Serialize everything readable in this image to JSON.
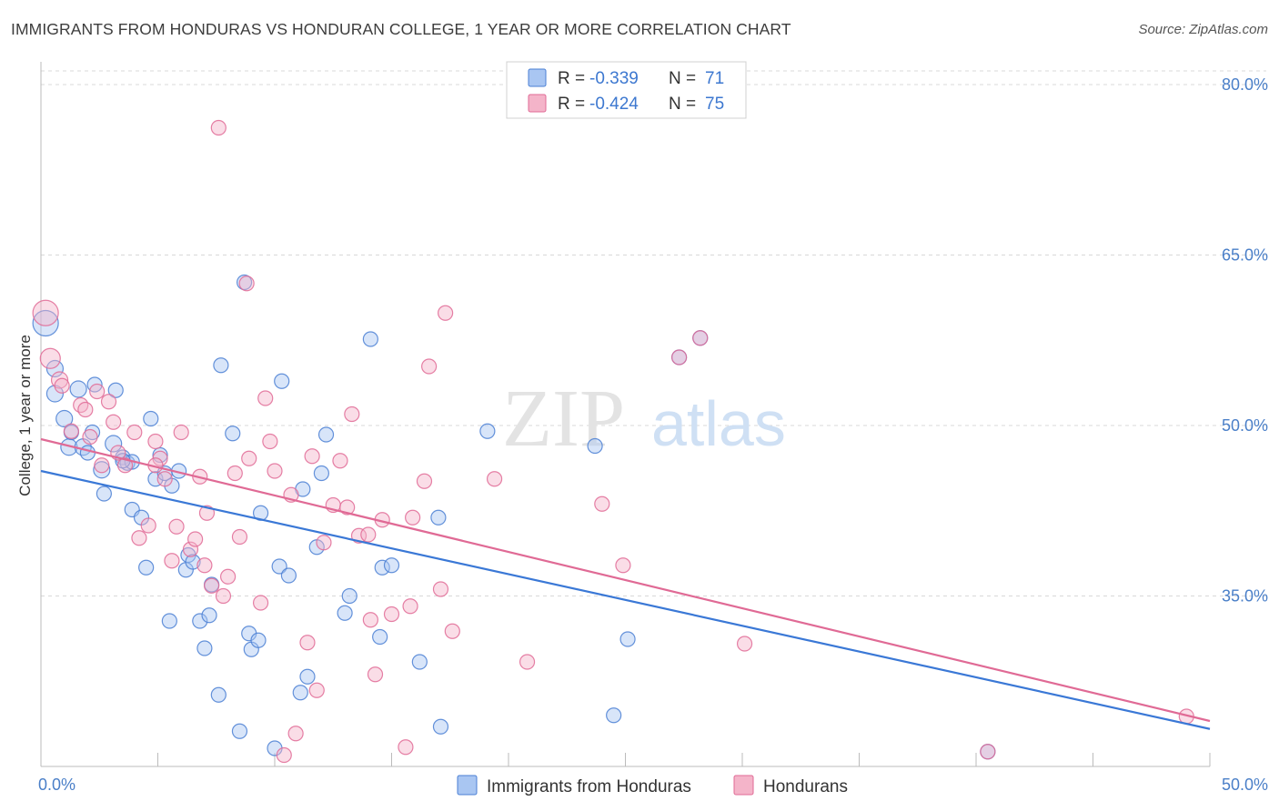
{
  "title": "IMMIGRANTS FROM HONDURAS VS HONDURAN COLLEGE, 1 YEAR OR MORE CORRELATION CHART",
  "source": "Source: ZipAtlas.com",
  "watermark": {
    "zip": "ZIP",
    "atlas": "atlas"
  },
  "colors": {
    "blue": "#4a7fd4",
    "blue_fill": "#a9c6f2",
    "pink": "#e06a95",
    "pink_fill": "#f4b4c9",
    "grid": "#d8d8d8",
    "tick_text": "#4a7fc8"
  },
  "chart_data": {
    "type": "scatter",
    "title": "IMMIGRANTS FROM HONDURAS VS HONDURAN COLLEGE, 1 YEAR OR MORE CORRELATION CHART",
    "xlabel": "",
    "ylabel": "College, 1 year or more",
    "xlim": [
      0,
      50
    ],
    "ylim": [
      20,
      82
    ],
    "x_tick_labels": [
      "0.0%",
      "50.0%"
    ],
    "y_ticks": [
      35,
      50,
      65,
      80
    ],
    "y_tick_labels": [
      "35.0%",
      "50.0%",
      "65.0%",
      "80.0%"
    ],
    "legend": {
      "r_label": "R =",
      "n_label": "N =",
      "entries": [
        {
          "series": "Immigrants from Honduras",
          "r": "-0.339",
          "n": "71"
        },
        {
          "series": "Hondurans",
          "r": "-0.424",
          "n": "75"
        }
      ]
    },
    "series": [
      {
        "name": "Immigrants from Honduras",
        "color": "blue",
        "trend": {
          "x0": 0,
          "y0": 46.0,
          "x1": 50,
          "y1": 23.3
        },
        "points": [
          [
            0.2,
            59.0,
            14
          ],
          [
            0.6,
            55.0,
            9
          ],
          [
            0.6,
            52.8,
            9
          ],
          [
            1.0,
            50.6,
            9
          ],
          [
            1.2,
            48.1,
            9
          ],
          [
            1.3,
            49.4,
            8
          ],
          [
            1.6,
            53.2,
            9
          ],
          [
            1.8,
            48.1,
            9
          ],
          [
            2.0,
            47.6,
            8
          ],
          [
            2.2,
            49.4,
            8
          ],
          [
            2.3,
            53.6,
            8
          ],
          [
            2.6,
            46.1,
            9
          ],
          [
            2.7,
            44.0,
            8
          ],
          [
            3.1,
            48.4,
            9
          ],
          [
            3.2,
            53.1,
            8
          ],
          [
            3.5,
            47.2,
            8
          ],
          [
            3.7,
            46.7,
            8
          ],
          [
            3.9,
            46.8,
            8
          ],
          [
            3.9,
            42.6,
            8
          ],
          [
            4.3,
            41.9,
            8
          ],
          [
            4.5,
            37.5,
            8
          ],
          [
            4.7,
            50.6,
            8
          ],
          [
            4.9,
            45.3,
            8
          ],
          [
            5.1,
            47.4,
            8
          ],
          [
            5.3,
            45.8,
            8
          ],
          [
            5.6,
            44.7,
            8
          ],
          [
            5.5,
            32.8,
            8
          ],
          [
            5.9,
            46.0,
            8
          ],
          [
            6.2,
            37.3,
            8
          ],
          [
            6.3,
            38.6,
            8
          ],
          [
            6.5,
            38.0,
            8
          ],
          [
            6.8,
            32.8,
            8
          ],
          [
            7.0,
            30.4,
            8
          ],
          [
            7.2,
            33.3,
            8
          ],
          [
            7.3,
            36.0,
            8
          ],
          [
            7.6,
            26.3,
            8
          ],
          [
            7.7,
            55.3,
            8
          ],
          [
            8.2,
            49.3,
            8
          ],
          [
            8.5,
            23.1,
            8
          ],
          [
            8.7,
            62.6,
            8
          ],
          [
            8.9,
            31.7,
            8
          ],
          [
            9.0,
            30.3,
            8
          ],
          [
            9.3,
            31.1,
            8
          ],
          [
            9.4,
            42.3,
            8
          ],
          [
            10.0,
            21.6,
            8
          ],
          [
            10.2,
            37.6,
            8
          ],
          [
            10.3,
            53.9,
            8
          ],
          [
            10.6,
            36.8,
            8
          ],
          [
            11.1,
            26.5,
            8
          ],
          [
            11.2,
            44.4,
            8
          ],
          [
            11.4,
            27.9,
            8
          ],
          [
            11.8,
            39.3,
            8
          ],
          [
            12.0,
            45.8,
            8
          ],
          [
            12.2,
            49.2,
            8
          ],
          [
            13.0,
            33.5,
            8
          ],
          [
            13.2,
            35.0,
            8
          ],
          [
            14.1,
            57.6,
            8
          ],
          [
            14.5,
            31.4,
            8
          ],
          [
            14.6,
            37.5,
            8
          ],
          [
            15.0,
            37.7,
            8
          ],
          [
            16.2,
            29.2,
            8
          ],
          [
            17.0,
            41.9,
            8
          ],
          [
            17.1,
            23.5,
            8
          ],
          [
            19.1,
            49.5,
            8
          ],
          [
            23.7,
            48.2,
            8
          ],
          [
            24.5,
            24.5,
            8
          ],
          [
            25.1,
            31.2,
            8
          ],
          [
            27.3,
            56.0,
            8
          ],
          [
            28.2,
            57.7,
            8
          ],
          [
            40.5,
            21.3,
            8
          ],
          [
            3.5,
            46.9,
            8
          ]
        ]
      },
      {
        "name": "Hondurans",
        "color": "pink",
        "trend": {
          "x0": 0,
          "y0": 48.8,
          "x1": 50,
          "y1": 24.0
        },
        "points": [
          [
            0.2,
            59.9,
            14
          ],
          [
            0.4,
            55.9,
            11
          ],
          [
            0.8,
            54.0,
            9
          ],
          [
            0.9,
            53.5,
            8
          ],
          [
            1.3,
            49.5,
            8
          ],
          [
            1.7,
            51.8,
            8
          ],
          [
            1.9,
            51.4,
            8
          ],
          [
            2.1,
            49.0,
            8
          ],
          [
            2.4,
            53.0,
            8
          ],
          [
            2.6,
            46.5,
            8
          ],
          [
            2.9,
            52.1,
            8
          ],
          [
            3.1,
            50.3,
            8
          ],
          [
            3.3,
            47.6,
            8
          ],
          [
            3.6,
            46.5,
            8
          ],
          [
            4.0,
            49.4,
            8
          ],
          [
            4.2,
            40.1,
            8
          ],
          [
            4.6,
            41.2,
            8
          ],
          [
            4.9,
            48.6,
            8
          ],
          [
            5.1,
            47.1,
            8
          ],
          [
            5.3,
            45.3,
            8
          ],
          [
            5.6,
            38.1,
            8
          ],
          [
            5.8,
            41.1,
            8
          ],
          [
            6.0,
            49.4,
            8
          ],
          [
            6.4,
            39.1,
            8
          ],
          [
            6.6,
            40.0,
            8
          ],
          [
            6.8,
            45.5,
            8
          ],
          [
            7.0,
            37.7,
            8
          ],
          [
            7.1,
            42.3,
            8
          ],
          [
            7.3,
            35.9,
            8
          ],
          [
            7.6,
            76.2,
            8
          ],
          [
            7.8,
            35.0,
            8
          ],
          [
            8.0,
            36.7,
            8
          ],
          [
            8.3,
            45.8,
            8
          ],
          [
            8.5,
            40.2,
            8
          ],
          [
            8.8,
            62.5,
            8
          ],
          [
            8.9,
            47.1,
            8
          ],
          [
            9.4,
            34.4,
            8
          ],
          [
            9.6,
            52.4,
            8
          ],
          [
            9.8,
            48.6,
            8
          ],
          [
            10.0,
            46.0,
            8
          ],
          [
            10.4,
            21.0,
            8
          ],
          [
            10.7,
            43.9,
            8
          ],
          [
            10.9,
            22.9,
            8
          ],
          [
            11.4,
            30.9,
            8
          ],
          [
            11.6,
            47.3,
            8
          ],
          [
            11.8,
            26.7,
            8
          ],
          [
            12.1,
            39.7,
            8
          ],
          [
            12.5,
            43.0,
            8
          ],
          [
            12.8,
            46.9,
            8
          ],
          [
            13.1,
            42.8,
            8
          ],
          [
            13.3,
            51.0,
            8
          ],
          [
            13.6,
            40.3,
            8
          ],
          [
            14.0,
            40.4,
            8
          ],
          [
            14.1,
            32.9,
            8
          ],
          [
            14.3,
            28.1,
            8
          ],
          [
            14.6,
            41.7,
            8
          ],
          [
            15.0,
            33.4,
            8
          ],
          [
            15.8,
            34.1,
            8
          ],
          [
            15.6,
            21.7,
            8
          ],
          [
            15.9,
            41.9,
            8
          ],
          [
            16.4,
            45.1,
            8
          ],
          [
            16.6,
            55.2,
            8
          ],
          [
            17.1,
            35.6,
            8
          ],
          [
            17.3,
            59.9,
            8
          ],
          [
            17.6,
            31.9,
            8
          ],
          [
            19.4,
            45.3,
            8
          ],
          [
            20.8,
            29.2,
            8
          ],
          [
            24.0,
            43.1,
            8
          ],
          [
            24.9,
            37.7,
            8
          ],
          [
            27.3,
            56.0,
            8
          ],
          [
            28.2,
            57.7,
            8
          ],
          [
            30.1,
            30.8,
            8
          ],
          [
            40.5,
            21.3,
            8
          ],
          [
            49.0,
            24.4,
            8
          ],
          [
            4.9,
            46.5,
            8
          ]
        ]
      }
    ]
  }
}
